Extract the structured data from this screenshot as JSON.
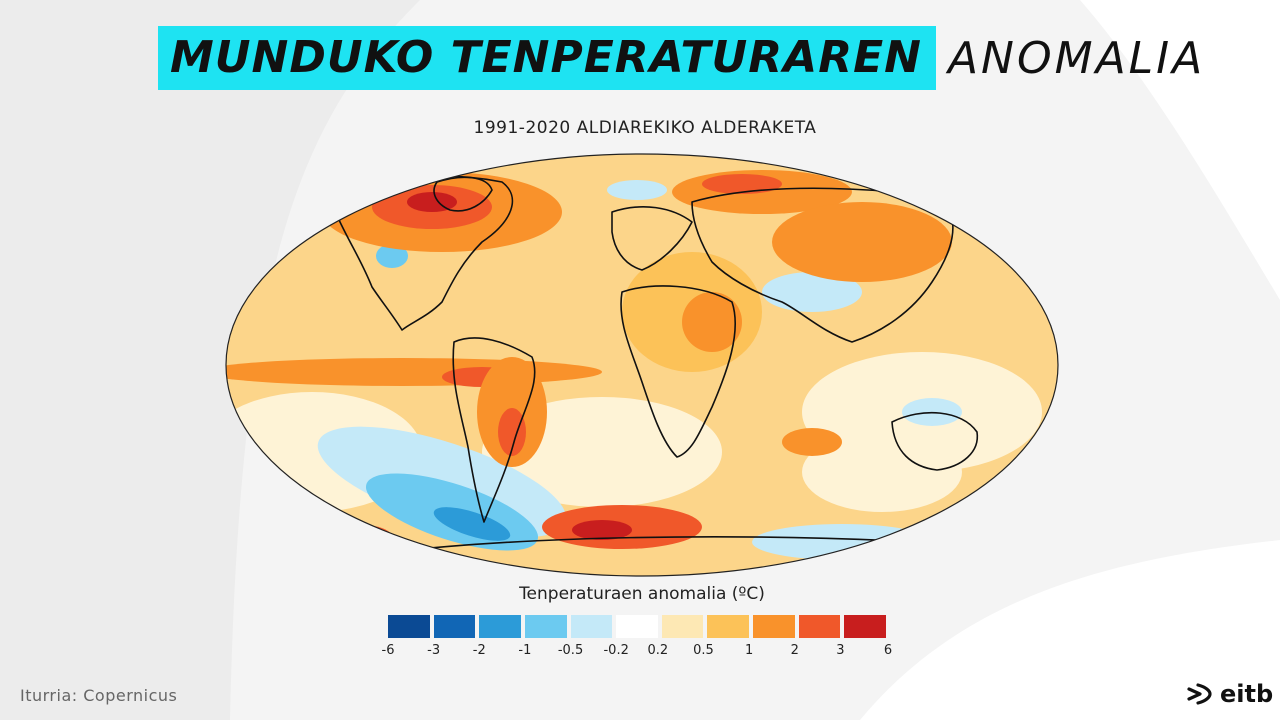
{
  "title": {
    "bold": "MUNDUKO TENPERATURAREN",
    "light": "ANOMALIA"
  },
  "subtitle": "1991-2020 ALDIAREKIKO ALDERAKETA",
  "legend": {
    "title": "Tenperaturaen anomalia (ºC)",
    "ticks": [
      "-6",
      "-3",
      "-2",
      "-1",
      "-0.5",
      "-0.2",
      "0.2",
      "0.5",
      "1",
      "2",
      "3",
      "6"
    ],
    "bins": [
      {
        "from": -6,
        "to": -3,
        "color": "#0b4a94"
      },
      {
        "from": -3,
        "to": -2,
        "color": "#1166b5"
      },
      {
        "from": -2,
        "to": -1,
        "color": "#2c9bd8"
      },
      {
        "from": -1,
        "to": -0.5,
        "color": "#6ccaf0"
      },
      {
        "from": -0.5,
        "to": -0.2,
        "color": "#c4e9f8"
      },
      {
        "from": -0.2,
        "to": 0.2,
        "color": "#ffffff"
      },
      {
        "from": 0.2,
        "to": 0.5,
        "color": "#fde8b4"
      },
      {
        "from": 0.5,
        "to": 1,
        "color": "#fcc258"
      },
      {
        "from": 1,
        "to": 2,
        "color": "#f9922b"
      },
      {
        "from": 2,
        "to": 3,
        "color": "#f0582a"
      },
      {
        "from": 3,
        "to": 6,
        "color": "#c81e1e"
      }
    ]
  },
  "source": "Iturria: Copernicus",
  "logo": {
    "name": "eitb-logo",
    "text": "eitb"
  },
  "colors": {
    "title_highlight": "#1ee3f2",
    "map_base": "#fcd58a",
    "coastline": "#111111"
  }
}
